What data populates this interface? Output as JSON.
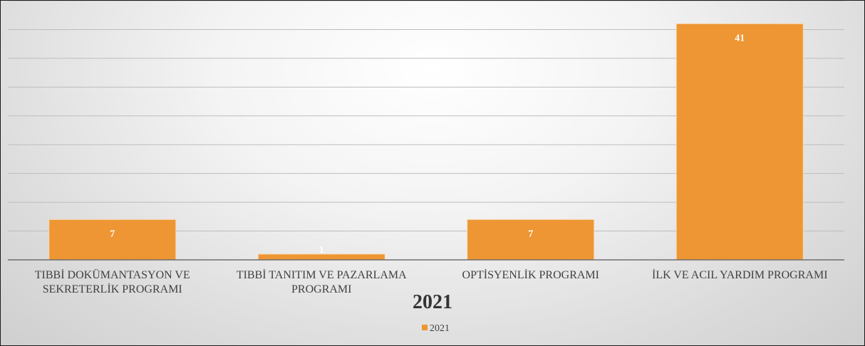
{
  "chart_data": {
    "type": "bar",
    "title": "2021",
    "categories": [
      [
        "TIBBİ DOKÜMANTASYON VE",
        "SEKRETERLİK PROGRAMI"
      ],
      [
        "TIBBİ TANITIM VE PAZARLAMA",
        "PROGRAMI"
      ],
      [
        "OPTİSYENLİK PROGRAMI"
      ],
      [
        "İLK VE ACIL YARDIM PROGRAMI"
      ]
    ],
    "series": [
      {
        "name": "2021",
        "values": [
          7,
          1,
          7,
          41
        ]
      }
    ],
    "ylim": [
      0,
      45
    ],
    "grid": true,
    "legend": "bottom",
    "colors": {
      "bar": "#ED9633",
      "bar_stroke": "#F7D7B0",
      "grid": "#bdbdbd",
      "axis": "#6f6f6f"
    }
  }
}
